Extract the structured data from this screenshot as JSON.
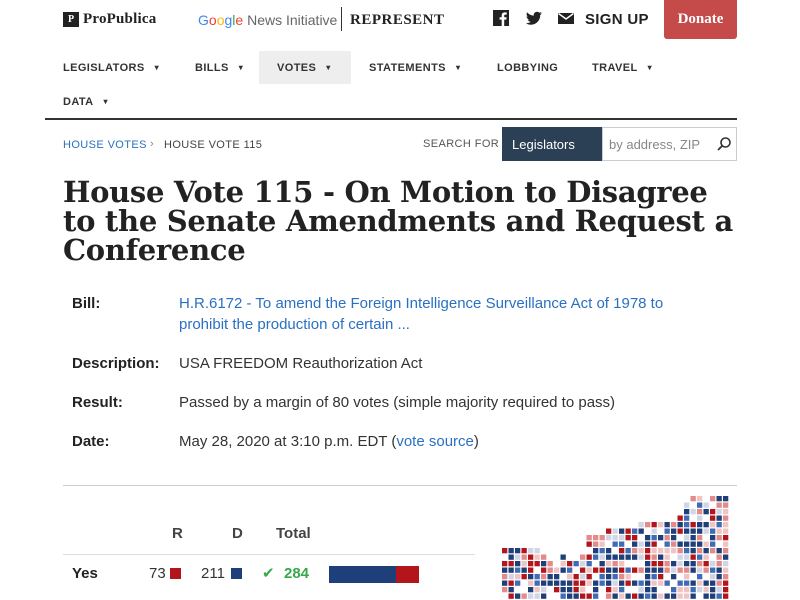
{
  "header": {
    "propublica_logo": "ProPublica",
    "google_logo": "Google",
    "google_suffix": " News Initiative",
    "represent_logo": "REPRESENT",
    "sign_up": "SIGN UP",
    "donate": "Donate",
    "icons": [
      "facebook-icon",
      "twitter-icon",
      "mail-icon"
    ]
  },
  "nav": {
    "items": [
      {
        "label": "LEGISLATORS",
        "dropdown": true
      },
      {
        "label": "BILLS",
        "dropdown": true
      },
      {
        "label": "VOTES",
        "dropdown": true,
        "active": true
      },
      {
        "label": "STATEMENTS",
        "dropdown": true
      },
      {
        "label": "LOBBYING",
        "dropdown": false
      },
      {
        "label": "TRAVEL",
        "dropdown": true
      },
      {
        "label": "DATA",
        "dropdown": true
      }
    ],
    "caret": "▾"
  },
  "breadcrumb": {
    "parent": "HOUSE VOTES",
    "separator": "›",
    "current": "HOUSE VOTE 115"
  },
  "search": {
    "label": "SEARCH FOR",
    "selected": "Legislators",
    "placeholder": "by address, ZIP"
  },
  "title": "House Vote 115 - On Motion to Disagree to the Senate Amendments and Request a Conference",
  "details": {
    "bill_label": "Bill:",
    "bill_value": "H.R.6172 - To amend the Foreign Intelligence Surveillance Act of 1978 to prohibit the production of certain ...",
    "description_label": "Description:",
    "description_value": "USA FREEDOM Reauthorization Act",
    "result_label": "Result:",
    "result_value": "Passed by a margin of 80 votes (simple majority required to pass)",
    "date_label": "Date:",
    "date_value": "May 28, 2020 at 3:10 p.m. EDT (",
    "vote_source": "vote source",
    "date_close": ")"
  },
  "votes_table": {
    "headers": {
      "r": "R",
      "d": "D",
      "total": "Total"
    },
    "rows": [
      {
        "label": "Yes",
        "r": "73",
        "d": "211",
        "total": "284",
        "d_share": 0.743,
        "r_share": 0.257
      }
    ]
  },
  "colors": {
    "republican": "#b3151a",
    "democrat": "#1e3f7a",
    "link": "#2a70c2",
    "donate": "#c44b49",
    "check": "#35a94a",
    "search_select": "#2b3f55"
  }
}
